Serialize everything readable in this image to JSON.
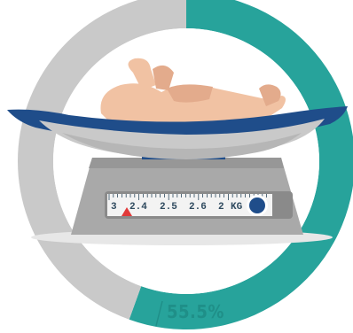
{
  "chart_data": {
    "type": "pie",
    "slices": [
      {
        "value": 55.5,
        "color": "#27a39b"
      },
      {
        "value": 44.5,
        "color": "#c9c9c9"
      }
    ],
    "data_label": "55.5%"
  },
  "scale": {
    "ticks": [
      "3",
      "2.4",
      "2.5",
      "2.6",
      "2"
    ],
    "unit": "KG"
  },
  "colors": {
    "teal": "#27a39b",
    "gray": "#c9c9c9",
    "navy": "#1f4d8a",
    "marker": "#e13a3a",
    "skin": "#f1c2a3"
  }
}
